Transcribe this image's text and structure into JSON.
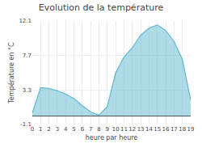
{
  "chart_data": {
    "type": "area",
    "title": "Evolution de la température",
    "xlabel": "heure par heure",
    "ylabel": "Température en °C",
    "x": [
      0,
      1,
      2,
      3,
      4,
      5,
      6,
      7,
      8,
      9,
      10,
      11,
      12,
      13,
      14,
      15,
      16,
      17,
      18,
      19
    ],
    "values": [
      0.4,
      3.6,
      3.5,
      3.2,
      2.8,
      2.2,
      1.3,
      0.5,
      0.1,
      1.2,
      5.5,
      7.5,
      8.7,
      10.3,
      11.2,
      11.6,
      10.9,
      9.5,
      7.2,
      2.0
    ],
    "color": "#60b8d0",
    "xlim": [
      0,
      19
    ],
    "xticks": [
      0,
      1,
      2,
      3,
      4,
      5,
      6,
      7,
      8,
      9,
      10,
      11,
      12,
      13,
      14,
      15,
      16,
      17,
      18,
      19
    ],
    "ylim": [
      -1.1,
      12.1
    ],
    "yticks": [
      -1.1,
      3.3,
      7.7,
      12.1
    ],
    "grid": true
  }
}
